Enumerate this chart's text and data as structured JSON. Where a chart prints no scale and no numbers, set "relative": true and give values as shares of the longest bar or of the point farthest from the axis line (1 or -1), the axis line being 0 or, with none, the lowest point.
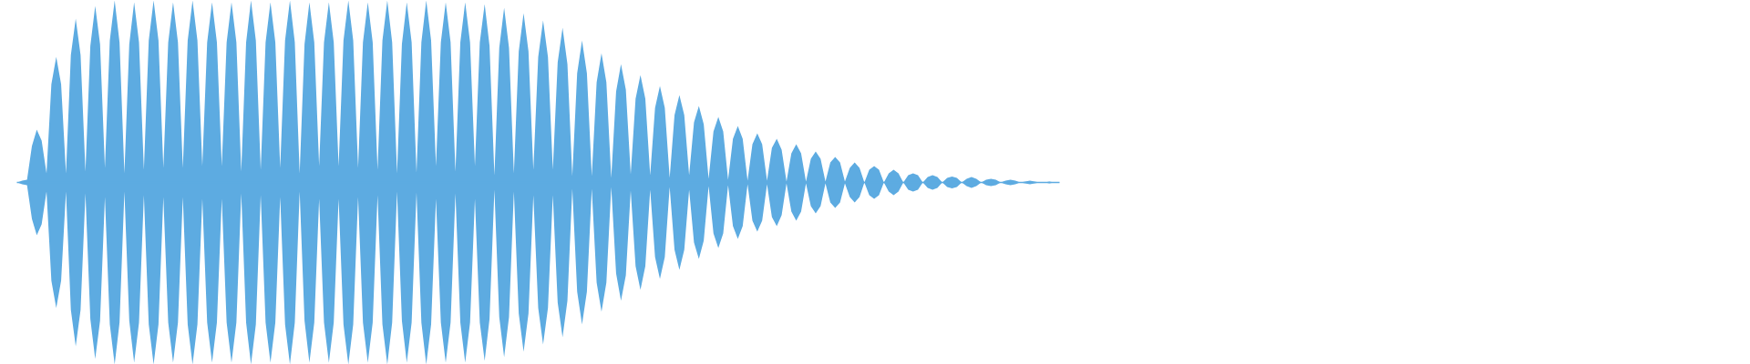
{
  "chart_data": {
    "type": "area",
    "relative": true,
    "categories": [
      null,
      null,
      null,
      null,
      null,
      null,
      null,
      null,
      null,
      null,
      null,
      null,
      null,
      null,
      null,
      null,
      null,
      null,
      null,
      null,
      null,
      null,
      null,
      null,
      null,
      null,
      null,
      null,
      null,
      null,
      null,
      null,
      null,
      null,
      null,
      null,
      null,
      null,
      null,
      null,
      null,
      null,
      null,
      null,
      null,
      null,
      null,
      null,
      null,
      null,
      null,
      null,
      null,
      null,
      null,
      null,
      null,
      null,
      null,
      null,
      null,
      null,
      null,
      null,
      null,
      null,
      null,
      null,
      null,
      null,
      null,
      null,
      null,
      null,
      null,
      null,
      null,
      null,
      null,
      null,
      null,
      null,
      null,
      null,
      null,
      null,
      null,
      null,
      null,
      null,
      null,
      null,
      null,
      null,
      null,
      null,
      null,
      null,
      null,
      null,
      null,
      null,
      null,
      null,
      null,
      null,
      null,
      null,
      null,
      null,
      null,
      null,
      null,
      null,
      null,
      null,
      null,
      null,
      null,
      null,
      null,
      null,
      null,
      null,
      null,
      null,
      null,
      null,
      null,
      null,
      null,
      null,
      null,
      null,
      null,
      null,
      null,
      null,
      null,
      null,
      null,
      null,
      null,
      null,
      null,
      null,
      null,
      null,
      null,
      null,
      null,
      null,
      null,
      null,
      null,
      null,
      null,
      null,
      null,
      null,
      null,
      null,
      null,
      null,
      null,
      null,
      null,
      null,
      null,
      null,
      null,
      null,
      null,
      null,
      null,
      null,
      null,
      null,
      null,
      null,
      null,
      null,
      null,
      null,
      null,
      null,
      null,
      null,
      null,
      null,
      null,
      null,
      null,
      null,
      null,
      null,
      null,
      null,
      null,
      null,
      null,
      null,
      null,
      null,
      null,
      null,
      null,
      null,
      null,
      null,
      null,
      null,
      null,
      null,
      null
    ],
    "series": [
      {
        "color": "#5dabe1",
        "values": [
          0,
          0.01,
          0.015,
          0.2,
          0.29,
          0.23,
          0.05,
          0.54,
          0.69,
          0.54,
          0.05,
          0.7,
          0.9,
          0.7,
          0.06,
          0.75,
          0.97,
          0.76,
          0.08,
          0.78,
          1.0,
          0.77,
          0.05,
          0.76,
          0.99,
          0.77,
          0.07,
          0.78,
          1.0,
          0.78,
          0.08,
          0.77,
          0.99,
          0.77,
          0.08,
          0.78,
          1.0,
          0.78,
          0.09,
          0.77,
          0.99,
          0.77,
          0.09,
          0.77,
          0.99,
          0.77,
          0.06,
          0.77,
          1.0,
          0.78,
          0.07,
          0.77,
          0.99,
          0.77,
          0.08,
          0.78,
          1.0,
          0.77,
          0.05,
          0.76,
          0.99,
          0.77,
          0.09,
          0.77,
          0.99,
          0.77,
          0.09,
          0.78,
          1.0,
          0.78,
          0.08,
          0.77,
          0.99,
          0.77,
          0.07,
          0.78,
          1.0,
          0.77,
          0.05,
          0.76,
          0.99,
          0.77,
          0.055,
          0.77,
          1.0,
          0.78,
          0.09,
          0.77,
          0.99,
          0.77,
          0.06,
          0.77,
          0.99,
          0.77,
          0.09,
          0.77,
          0.98,
          0.75,
          0.04,
          0.74,
          0.96,
          0.74,
          0.05,
          0.72,
          0.93,
          0.72,
          0.07,
          0.69,
          0.89,
          0.69,
          0.07,
          0.66,
          0.85,
          0.65,
          0.035,
          0.6,
          0.78,
          0.6,
          0.035,
          0.55,
          0.71,
          0.55,
          0.025,
          0.5,
          0.65,
          0.51,
          0.045,
          0.46,
          0.59,
          0.46,
          0.04,
          0.41,
          0.53,
          0.41,
          0.025,
          0.37,
          0.48,
          0.37,
          0.04,
          0.33,
          0.42,
          0.32,
          0.02,
          0.28,
          0.36,
          0.28,
          0.015,
          0.24,
          0.31,
          0.24,
          0.01,
          0.21,
          0.27,
          0.21,
          0.01,
          0.19,
          0.24,
          0.18,
          0.005,
          0.16,
          0.21,
          0.16,
          0.005,
          0.13,
          0.17,
          0.13,
          0.005,
          0.11,
          0.14,
          0.11,
          0.005,
          0.08,
          0.11,
          0.08,
          0,
          0.07,
          0.09,
          0.07,
          0,
          0.05,
          0.07,
          0.05,
          0,
          0.04,
          0.05,
          0.04,
          0,
          0.03,
          0.04,
          0.03,
          0,
          0.025,
          0.033,
          0.025,
          0,
          0.02,
          0.03,
          0.02,
          0,
          0.015,
          0.02,
          0.015,
          0,
          0.01,
          0.015,
          0.01,
          0,
          0.005,
          0.01,
          0.005,
          0,
          0,
          0.005,
          0,
          0
        ]
      },
      {
        "color": "#5dabe1",
        "values": [
          0,
          -0.01,
          -0.015,
          -0.2,
          -0.29,
          -0.23,
          -0.05,
          -0.54,
          -0.69,
          -0.54,
          -0.05,
          -0.7,
          -0.9,
          -0.7,
          -0.06,
          -0.75,
          -0.97,
          -0.76,
          -0.08,
          -0.78,
          -1.0,
          -0.77,
          -0.05,
          -0.76,
          -0.99,
          -0.77,
          -0.07,
          -0.78,
          -1.0,
          -0.78,
          -0.08,
          -0.77,
          -0.99,
          -0.77,
          -0.08,
          -0.78,
          -1.0,
          -0.78,
          -0.09,
          -0.77,
          -0.99,
          -0.77,
          -0.09,
          -0.77,
          -0.99,
          -0.77,
          -0.06,
          -0.77,
          -1.0,
          -0.78,
          -0.07,
          -0.77,
          -0.99,
          -0.77,
          -0.08,
          -0.78,
          -1.0,
          -0.77,
          -0.05,
          -0.76,
          -0.99,
          -0.77,
          -0.09,
          -0.77,
          -0.99,
          -0.77,
          -0.09,
          -0.78,
          -1.0,
          -0.78,
          -0.08,
          -0.77,
          -0.99,
          -0.77,
          -0.07,
          -0.78,
          -1.0,
          -0.77,
          -0.05,
          -0.76,
          -0.99,
          -0.77,
          -0.055,
          -0.77,
          -1.0,
          -0.78,
          -0.09,
          -0.77,
          -0.99,
          -0.77,
          -0.06,
          -0.77,
          -0.99,
          -0.77,
          -0.09,
          -0.77,
          -0.98,
          -0.75,
          -0.04,
          -0.74,
          -0.96,
          -0.74,
          -0.05,
          -0.72,
          -0.93,
          -0.72,
          -0.07,
          -0.69,
          -0.89,
          -0.69,
          -0.07,
          -0.66,
          -0.85,
          -0.65,
          -0.035,
          -0.6,
          -0.78,
          -0.6,
          -0.035,
          -0.55,
          -0.71,
          -0.55,
          -0.025,
          -0.5,
          -0.65,
          -0.51,
          -0.045,
          -0.46,
          -0.59,
          -0.46,
          -0.04,
          -0.41,
          -0.53,
          -0.41,
          -0.025,
          -0.37,
          -0.48,
          -0.37,
          -0.04,
          -0.33,
          -0.42,
          -0.32,
          -0.02,
          -0.28,
          -0.36,
          -0.28,
          -0.015,
          -0.24,
          -0.31,
          -0.24,
          -0.01,
          -0.21,
          -0.27,
          -0.21,
          -0.01,
          -0.19,
          -0.24,
          -0.18,
          -0.005,
          -0.16,
          -0.21,
          -0.16,
          -0.005,
          -0.13,
          -0.17,
          -0.13,
          -0.005,
          -0.11,
          -0.14,
          -0.11,
          -0.005,
          -0.08,
          -0.11,
          -0.08,
          0,
          -0.07,
          -0.09,
          -0.07,
          0,
          -0.05,
          -0.07,
          -0.05,
          0,
          -0.04,
          -0.05,
          -0.04,
          0,
          -0.03,
          -0.04,
          -0.03,
          0,
          -0.025,
          -0.033,
          -0.025,
          0,
          -0.02,
          -0.03,
          -0.02,
          0,
          -0.015,
          -0.02,
          -0.015,
          0,
          -0.01,
          -0.015,
          -0.01,
          0,
          -0.005,
          -0.01,
          -0.005,
          0,
          0,
          -0.005,
          0,
          0
        ]
      }
    ]
  }
}
